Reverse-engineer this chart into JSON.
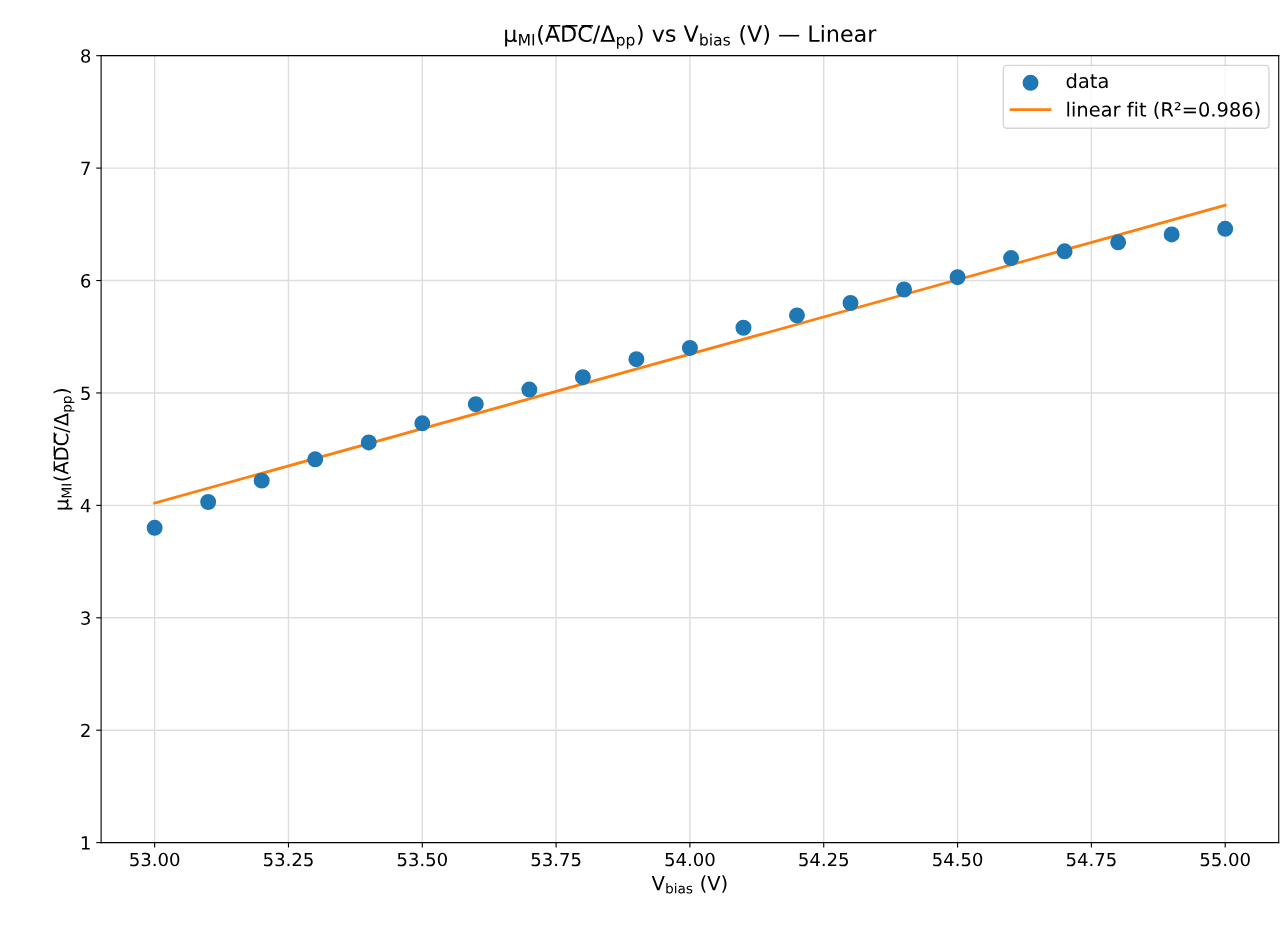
{
  "chart_data": {
    "type": "scatter",
    "title": "μ$_{MI}$(A̅D̅C̅/Δ$_{pp}$) vs V$_{bias}$ (V) — Linear",
    "xlabel": "V$_{bias}$ (V)",
    "ylabel": "μ$_{MI}$(A̅D̅C̅/Δ$_{pp}$)",
    "x": [
      53.0,
      53.1,
      53.2,
      53.3,
      53.4,
      53.5,
      53.6,
      53.7,
      53.8,
      53.9,
      54.0,
      54.1,
      54.2,
      54.3,
      54.4,
      54.5,
      54.6,
      54.7,
      54.8,
      54.9,
      55.0
    ],
    "series": [
      {
        "name": "data",
        "color": "#1f77b4",
        "marker": "circle",
        "values": [
          3.8,
          4.03,
          4.22,
          4.41,
          4.56,
          4.73,
          4.9,
          5.03,
          5.14,
          5.3,
          5.4,
          5.58,
          5.69,
          5.8,
          5.92,
          6.03,
          6.2,
          6.26,
          6.34,
          6.41,
          6.46
        ]
      },
      {
        "name": "linear fit (R²=0.986)",
        "type": "line",
        "color": "#ff7f0e",
        "x": [
          53.0,
          55.0
        ],
        "values": [
          4.02,
          6.67
        ]
      }
    ],
    "xlim": [
      52.9,
      55.1
    ],
    "ylim": [
      1,
      8
    ],
    "xticks": [
      {
        "value": 53.0,
        "label": "53.00"
      },
      {
        "value": 53.25,
        "label": "53.25"
      },
      {
        "value": 53.5,
        "label": "53.50"
      },
      {
        "value": 53.75,
        "label": "53.75"
      },
      {
        "value": 54.0,
        "label": "54.00"
      },
      {
        "value": 54.25,
        "label": "54.25"
      },
      {
        "value": 54.5,
        "label": "54.50"
      },
      {
        "value": 54.75,
        "label": "54.75"
      },
      {
        "value": 55.0,
        "label": "55.00"
      }
    ],
    "yticks": [
      1,
      2,
      3,
      4,
      5,
      6,
      7,
      8
    ],
    "grid": true,
    "legend": "top right"
  }
}
